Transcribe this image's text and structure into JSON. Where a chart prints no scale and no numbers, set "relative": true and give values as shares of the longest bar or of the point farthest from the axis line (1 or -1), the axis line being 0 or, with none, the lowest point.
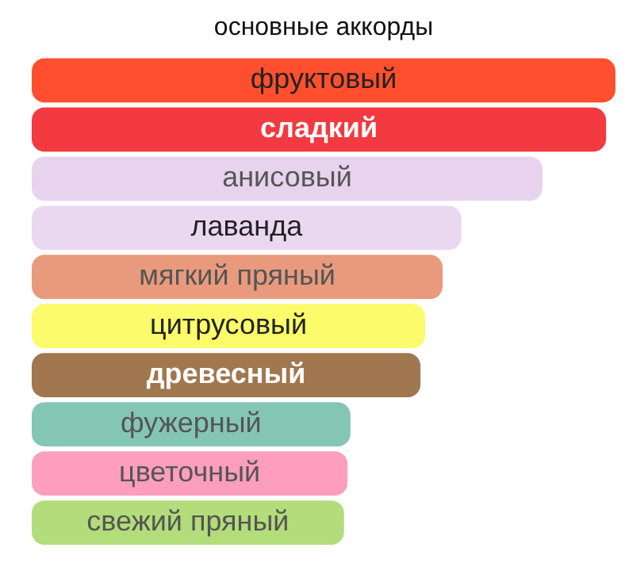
{
  "chart_data": {
    "type": "bar",
    "orientation": "horizontal",
    "relative": true,
    "title": "основные аккорды",
    "categories": [
      "фруктовый",
      "сладкий",
      "анисовый",
      "лаванда",
      "мягкий пряный",
      "цитрусовый",
      "древесный",
      "фужерный",
      "цветочный",
      "свежий пряный"
    ],
    "values": [
      1,
      0.984,
      0.875,
      0.736,
      0.704,
      0.674,
      0.666,
      0.546,
      0.541,
      0.535
    ],
    "colors": [
      "#ff4f2e",
      "#f23a40",
      "#e8d3ee",
      "#ead8f0",
      "#e99a7d",
      "#fbfb6c",
      "#a0774f",
      "#84c6b4",
      "#fd9ebe",
      "#b3dc7a"
    ],
    "legend": false
  }
}
